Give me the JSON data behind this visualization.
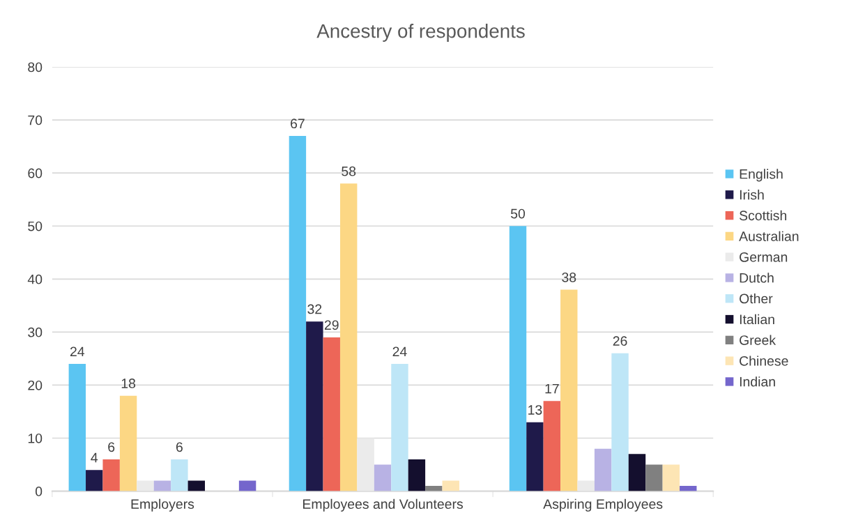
{
  "chart_data": {
    "type": "bar",
    "title": "Ancestry of respondents",
    "categories": [
      "Employers",
      "Employees and Volunteers",
      "Aspiring Employees"
    ],
    "series": [
      {
        "name": "English",
        "color": "#5bc5f2",
        "values": [
          24,
          67,
          50
        ],
        "value_labels": [
          "24",
          "67",
          "50"
        ]
      },
      {
        "name": "Irish",
        "color": "#1f1a4a",
        "values": [
          4,
          32,
          13
        ],
        "value_labels": [
          "4",
          "32",
          "13"
        ]
      },
      {
        "name": "Scottish",
        "color": "#ed6658",
        "values": [
          6,
          29,
          17
        ],
        "value_labels": [
          "6",
          "29",
          "17"
        ]
      },
      {
        "name": "Australian",
        "color": "#fcd784",
        "values": [
          18,
          58,
          38
        ],
        "value_labels": [
          "18",
          "58",
          "38"
        ]
      },
      {
        "name": "German",
        "color": "#ebebeb",
        "values": [
          2,
          10,
          2
        ]
      },
      {
        "name": "Dutch",
        "color": "#b8b2e4",
        "values": [
          2,
          5,
          8
        ]
      },
      {
        "name": "Other",
        "color": "#bee6f7",
        "values": [
          6,
          24,
          26
        ],
        "value_labels": [
          "6",
          "24",
          "26"
        ]
      },
      {
        "name": "Italian",
        "color": "#140f2e",
        "values": [
          2,
          6,
          7
        ]
      },
      {
        "name": "Greek",
        "color": "#808080",
        "values": [
          0,
          1,
          5
        ]
      },
      {
        "name": "Chinese",
        "color": "#fde5b4",
        "values": [
          0,
          2,
          5
        ]
      },
      {
        "name": "Indian",
        "color": "#7466cc",
        "values": [
          2,
          0,
          1
        ]
      }
    ],
    "ylim": [
      0,
      80
    ],
    "yticks": [
      0,
      10,
      20,
      30,
      40,
      50,
      60,
      70,
      80
    ],
    "grid": "y",
    "legend": "right"
  }
}
